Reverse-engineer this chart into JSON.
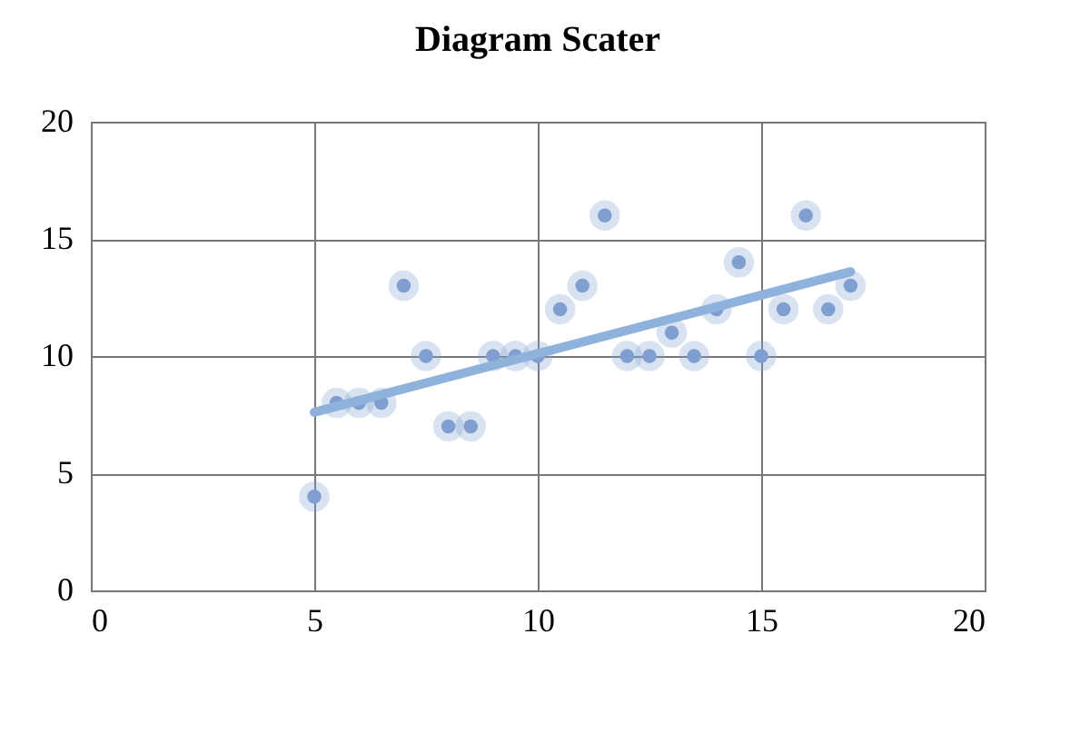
{
  "chart_data": {
    "type": "scatter",
    "title": "Diagram Scater",
    "xlim": [
      0,
      20
    ],
    "xticks": [
      0,
      5,
      10,
      15,
      20
    ],
    "ylim": [
      0,
      20
    ],
    "yticks": [
      0,
      5,
      10,
      15,
      20
    ],
    "grid": true,
    "series": [
      {
        "marker": "circle",
        "color": "#7f9fcf",
        "x": [
          5,
          5.5,
          6,
          6.5,
          7,
          7.5,
          8,
          8.5,
          9,
          9.5,
          10,
          10.5,
          11,
          11.5,
          12,
          12.5,
          13,
          13.5,
          14,
          14.5,
          15,
          15.5,
          16,
          16.5,
          17
        ],
        "values": [
          4,
          8,
          8,
          8,
          13,
          10,
          7,
          7,
          10,
          10,
          10,
          12,
          13,
          16,
          10,
          10,
          11,
          10,
          12,
          14,
          10,
          12,
          16,
          12,
          13
        ]
      },
      {
        "type": "line",
        "color": "#8fb2dd",
        "x": [
          5,
          17
        ],
        "values": [
          7.6,
          13.6
        ]
      }
    ]
  }
}
